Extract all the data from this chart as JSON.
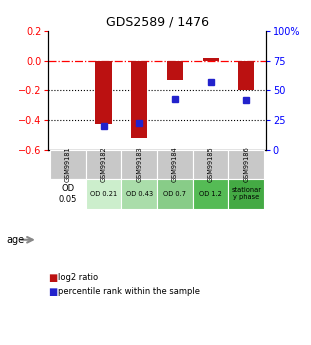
{
  "title": "GDS2589 / 1476",
  "samples": [
    "GSM99181",
    "GSM99182",
    "GSM99183",
    "GSM99184",
    "GSM99185",
    "GSM99186"
  ],
  "log2_ratio": [
    0.0,
    -0.43,
    -0.52,
    -0.13,
    0.02,
    -0.2
  ],
  "percentile_rank": [
    null,
    20,
    22,
    43,
    57,
    42
  ],
  "age_labels": [
    "OD\n0.05",
    "OD 0.21",
    "OD 0.43",
    "OD 0.7",
    "OD 1.2",
    "stationar\ny phase"
  ],
  "age_colors": [
    "#ffffff",
    "#cceecc",
    "#aaddaa",
    "#88cc88",
    "#55bb55",
    "#44aa44"
  ],
  "bar_color": "#bb1111",
  "dot_color": "#2222cc",
  "ylim_left": [
    -0.6,
    0.2
  ],
  "ylim_right": [
    0,
    100
  ],
  "yticks_left": [
    0.2,
    0.0,
    -0.2,
    -0.4,
    -0.6
  ],
  "yticks_right": [
    100,
    75,
    50,
    25,
    0
  ],
  "hline_y": 0.0,
  "dotted_lines": [
    -0.2,
    -0.4
  ],
  "bar_width": 0.45,
  "background_color": "#ffffff",
  "legend_items": [
    "log2 ratio",
    "percentile rank within the sample"
  ]
}
